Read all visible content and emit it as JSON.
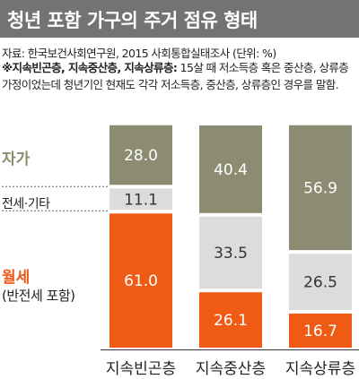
{
  "title": "청년 포함 가구의 주거 점유 형태",
  "source": "자료: 한국보건사회연구원, 2015 사회통합실태조사 (단위: %)",
  "note": {
    "bold_part": "※지속빈곤층, 지속중산층, 지속상류층:",
    "rest": " 15살 때 저소득층 혹은 중산층, 상류층 가정이었는데 청년기인 현재도 각각 저소득층, 중산층, 상류층인 경우를 말함."
  },
  "legend": {
    "own": "자가",
    "jeonse": "전세·기타",
    "wolse": "월세",
    "wolse_sub": "(반전세 포함)"
  },
  "colors": {
    "own": "#8c8c72",
    "jeonse": "#dcdcdc",
    "wolse": "#ef5a14",
    "title_bg": "#737373"
  },
  "chart_data": {
    "type": "bar",
    "stacked": true,
    "unit": "%",
    "categories": [
      "지속빈곤층",
      "지속중산층",
      "지속상류층"
    ],
    "series": [
      {
        "name": "월세",
        "values": [
          61.0,
          26.1,
          16.7
        ]
      },
      {
        "name": "전세·기타",
        "values": [
          11.1,
          33.5,
          26.5
        ]
      },
      {
        "name": "자가",
        "values": [
          28.0,
          40.4,
          56.9
        ]
      }
    ],
    "value_labels": {
      "월세": [
        "61.0",
        "26.1",
        "16.7"
      ],
      "전세·기타": [
        "11.1",
        "33.5",
        "26.5"
      ],
      "자가": [
        "28.0",
        "40.4",
        "56.9"
      ]
    },
    "ylim": [
      0,
      100
    ]
  }
}
